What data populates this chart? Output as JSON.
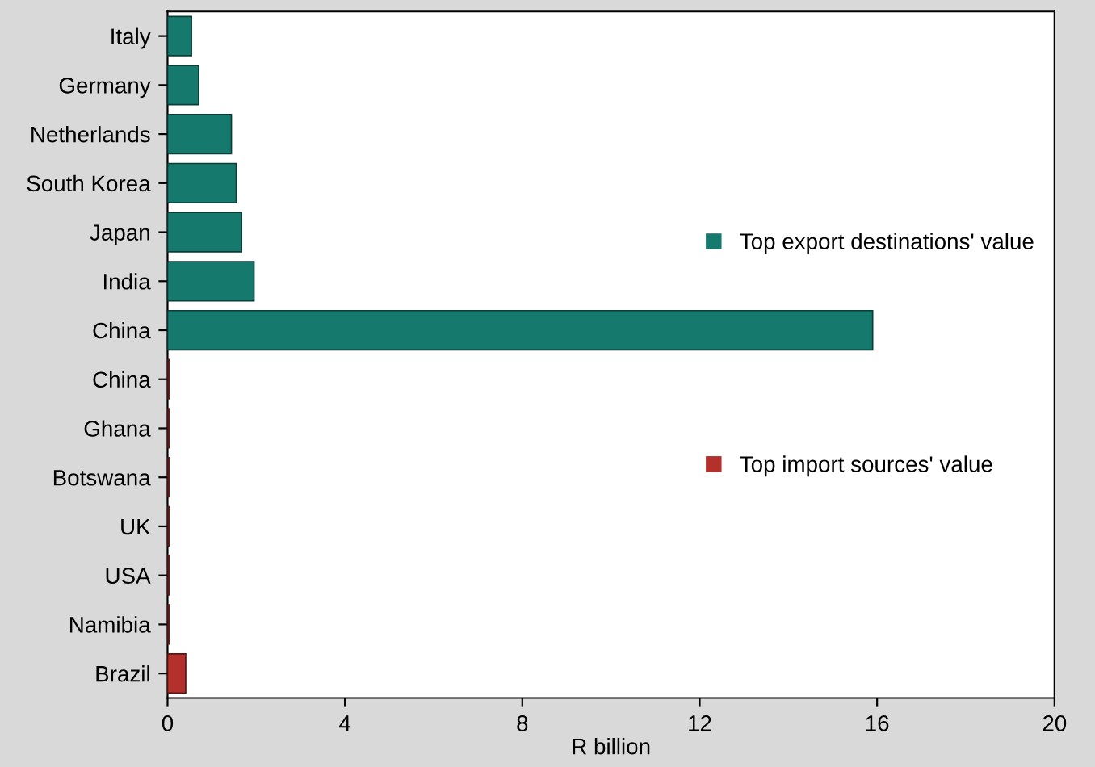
{
  "chart_data": {
    "type": "bar",
    "orientation": "horizontal",
    "xlabel": "R billion",
    "categories": [
      "Italy",
      "Germany",
      "Netherlands",
      "South Korea",
      "Japan",
      "India",
      "China",
      "China",
      "Ghana",
      "Botswana",
      "UK",
      "USA",
      "Namibia",
      "Brazil"
    ],
    "series": [
      {
        "name": "Top export destinations' value",
        "color": "#16796d",
        "values": [
          0.54,
          0.7,
          1.44,
          1.55,
          1.67,
          1.95,
          15.9,
          null,
          null,
          null,
          null,
          null,
          null,
          null
        ]
      },
      {
        "name": "Top import sources' value",
        "color": "#b3302c",
        "values": [
          null,
          null,
          null,
          null,
          null,
          null,
          null,
          0.03,
          0.03,
          0.03,
          0.03,
          0.03,
          0.03,
          0.41
        ]
      }
    ],
    "xlim": [
      0,
      20
    ],
    "xticks": [
      0,
      4,
      8,
      12,
      16,
      20
    ],
    "grid": false,
    "legend": "right"
  }
}
